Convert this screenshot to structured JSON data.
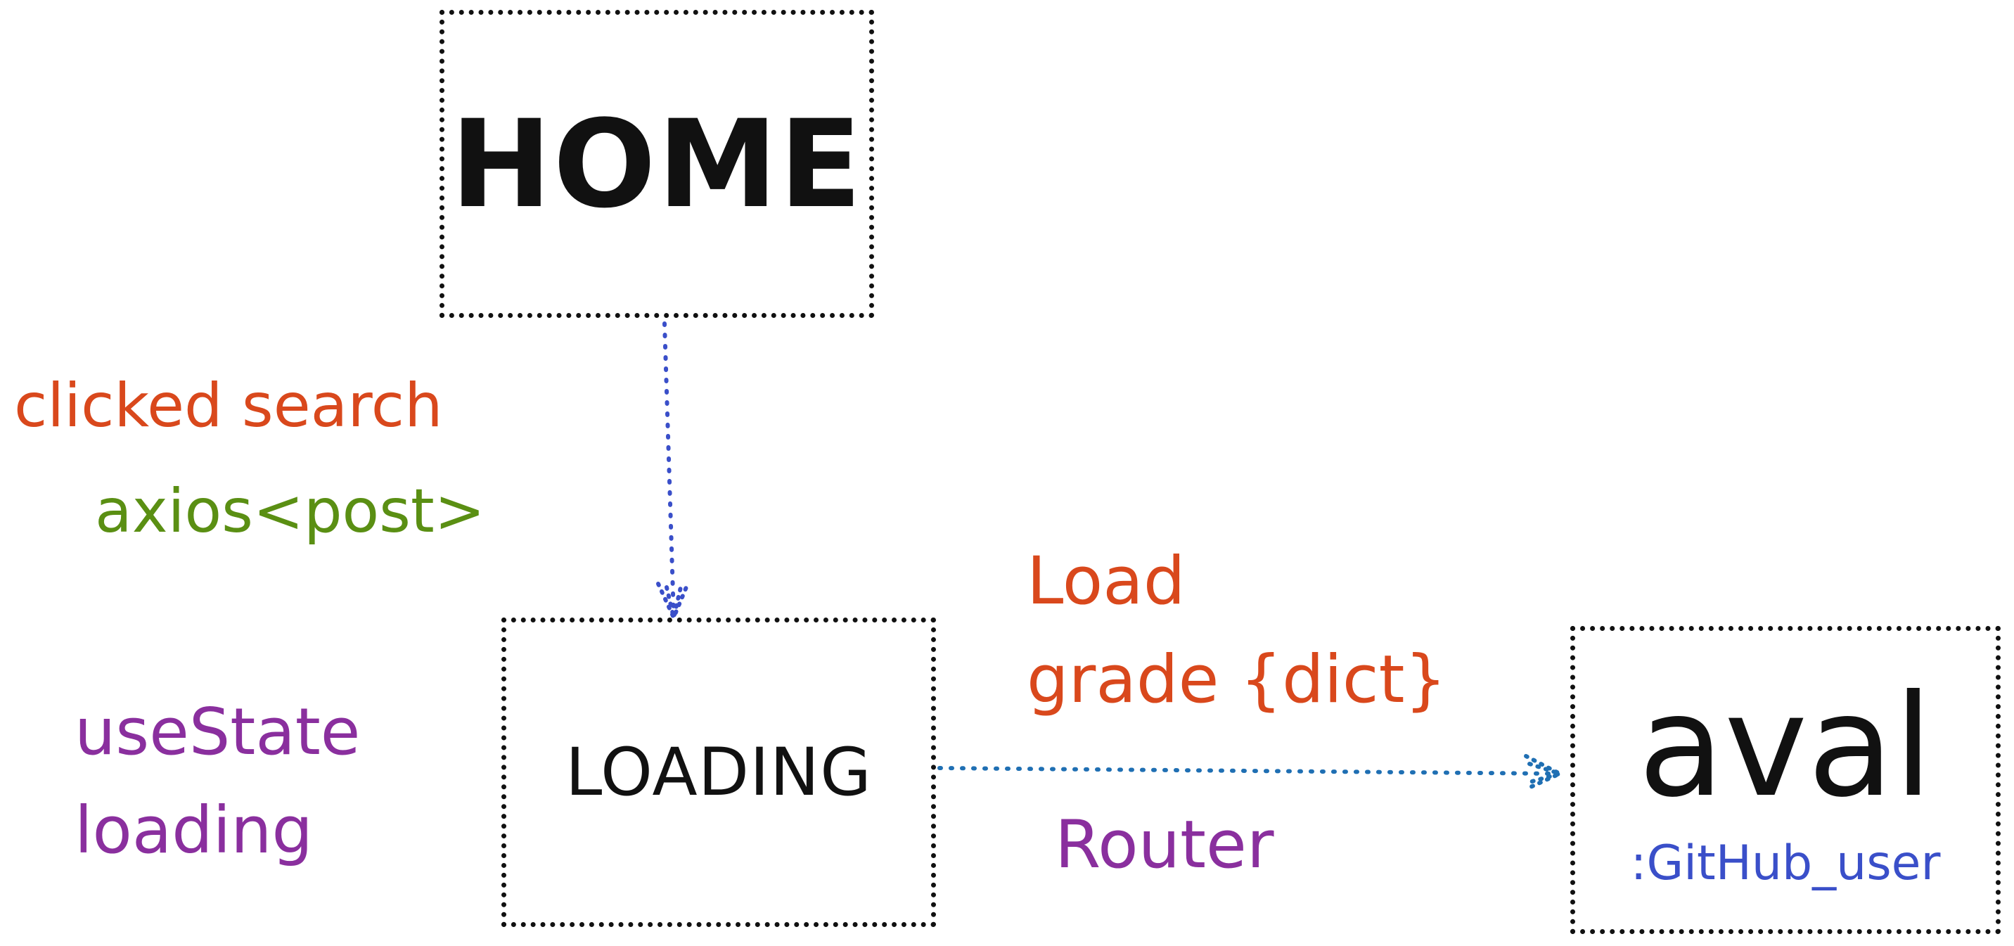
{
  "nodes": {
    "home": {
      "label": "HOME"
    },
    "loading": {
      "label": "LOADING"
    },
    "aval": {
      "label": "aval",
      "subtitle": ":GitHub_user"
    }
  },
  "annotations": {
    "clicked_search": "clicked search",
    "axios_post": "axios<post>",
    "usestate": "useState",
    "loading_state": "loading",
    "load": "Load",
    "grade_dict": "grade {dict}",
    "router": "Router"
  },
  "colors": {
    "box_border": "#111111",
    "arrow_home_loading": "#3a4fc9",
    "arrow_loading_aval": "#1f6fb3",
    "orange_text": "#d9481c",
    "green_text": "#5a8f13",
    "purple_text": "#8a2f9e",
    "blue_text": "#3a4fc9"
  },
  "edges": [
    {
      "from": "home",
      "to": "loading"
    },
    {
      "from": "loading",
      "to": "aval"
    }
  ]
}
